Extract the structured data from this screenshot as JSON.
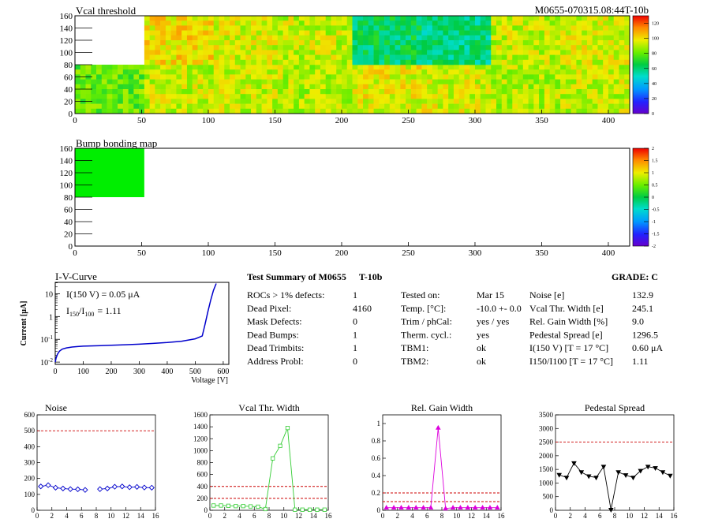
{
  "module_id": "M0655-070315.08:44T-10b",
  "maps": [
    {
      "title": "Vcal threshold",
      "x_ticks": [
        "0",
        "50",
        "100",
        "150",
        "200",
        "250",
        "300",
        "350",
        "400"
      ],
      "y_ticks": [
        "0",
        "20",
        "40",
        "60",
        "80",
        "100",
        "120",
        "140",
        "160"
      ],
      "z_ticks": [
        "0",
        "20",
        "40",
        "60",
        "80",
        "100",
        "120"
      ],
      "zlim": [
        0,
        130
      ],
      "rocs_bottom": [
        80,
        92,
        92,
        90,
        96,
        94,
        90,
        92
      ],
      "rocs_top": [
        null,
        100,
        94,
        92,
        62,
        58,
        92,
        94
      ],
      "xlim": [
        0,
        416
      ],
      "ylim": [
        0,
        160
      ]
    },
    {
      "title": "Bump bonding map",
      "x_ticks": [
        "0",
        "50",
        "100",
        "150",
        "200",
        "250",
        "300",
        "350",
        "400"
      ],
      "y_ticks": [
        "0",
        "20",
        "40",
        "60",
        "80",
        "100",
        "120",
        "140",
        "160"
      ],
      "z_ticks": [
        "-2",
        "-1.5",
        "-1",
        "-0.5",
        "0",
        "0.5",
        "1",
        "1.5",
        "2"
      ],
      "zlim": [
        -2,
        2
      ],
      "filled_roc": {
        "x": [
          0,
          52
        ],
        "y": [
          80,
          160
        ],
        "value": 0
      },
      "xlim": [
        0,
        416
      ],
      "ylim": [
        0,
        160
      ]
    }
  ],
  "iv": {
    "title": "I-V-Curve",
    "i150": "I(150 V) = 0.05 μA",
    "ratio_main": "I",
    "ratio_sub1": "150",
    "ratio_slash": "/I",
    "ratio_sub2": "100",
    "ratio_val": "= 1.11",
    "xlabel": "Voltage [V]",
    "ylabel": "Current [μA]",
    "x_ticks": [
      "0",
      "100",
      "200",
      "300",
      "400",
      "500",
      "600"
    ],
    "y_ticks": [
      {
        "base": "10",
        "exp": "-2"
      },
      {
        "base": "10",
        "exp": "-1"
      },
      {
        "base": "1",
        "exp": ""
      },
      {
        "base": "10",
        "exp": ""
      }
    ],
    "xlim": [
      0,
      620
    ],
    "ylog": [
      -2.1,
      1.5
    ],
    "voltage": [
      0,
      3,
      8,
      15,
      25,
      40,
      60,
      80,
      100,
      150,
      200,
      250,
      300,
      350,
      400,
      450,
      500,
      525,
      535,
      545,
      555,
      565,
      575
    ],
    "current": [
      0.01,
      0.015,
      0.022,
      0.03,
      0.037,
      0.042,
      0.046,
      0.048,
      0.05,
      0.052,
      0.055,
      0.058,
      0.061,
      0.066,
      0.072,
      0.082,
      0.105,
      0.14,
      0.45,
      1.6,
      5.0,
      14.0,
      28.0
    ]
  },
  "summary": {
    "title": "Test Summary of M0655",
    "subtitle": "T-10b",
    "grade": "GRADE:  C",
    "left_rows": [
      {
        "label": "ROCs > 1% defects:",
        "value": "1"
      },
      {
        "label": "Dead Pixel:",
        "value": "4160"
      },
      {
        "label": "Mask Defects:",
        "value": "0"
      },
      {
        "label": "Dead Bumps:",
        "value": "1"
      },
      {
        "label": "Dead Trimbits:",
        "value": "1"
      },
      {
        "label": "Address Probl:",
        "value": "0"
      }
    ],
    "mid_rows": [
      {
        "label": "Tested on:",
        "value": "Mar 15"
      },
      {
        "label": "Temp. [°C]:",
        "value": "-10.0 +- 0.0"
      },
      {
        "label": "Trim / phCal:",
        "value": "yes / yes"
      },
      {
        "label": "Therm. cycl.:",
        "value": "yes"
      },
      {
        "label": "TBM1:",
        "value": "ok"
      },
      {
        "label": "TBM2:",
        "value": "ok"
      }
    ],
    "right_rows": [
      {
        "label": "Noise [e]",
        "value": "132.9"
      },
      {
        "label": "Vcal Thr. Width [e]",
        "value": "245.1"
      },
      {
        "label": "Rel. Gain Width [%]",
        "value": "9.0"
      },
      {
        "label": "Pedestal Spread [e]",
        "value": "1296.5"
      },
      {
        "label": "I(150 V)  [T = 17 °C]",
        "value": "0.60 μA"
      },
      {
        "label": "I150/I100  [T = 17 °C]",
        "value": "1.11"
      }
    ]
  },
  "chart_data": [
    {
      "type": "line",
      "title": "Noise",
      "marker": "diamond",
      "color": "#0000cc",
      "xlim": [
        0,
        16
      ],
      "ylim": [
        0,
        600
      ],
      "x_ticks": [
        "0",
        "2",
        "4",
        "6",
        "8",
        "10",
        "12",
        "14",
        "16"
      ],
      "y_ticks": [
        "0",
        "100",
        "200",
        "300",
        "400",
        "500",
        "600"
      ],
      "threshold": [
        500
      ],
      "segments": [
        {
          "x": [
            0,
            1,
            2,
            3,
            4,
            5,
            6
          ],
          "y": [
            150,
            158,
            142,
            137,
            133,
            132,
            128
          ]
        },
        {
          "x": [
            8,
            9,
            10,
            11,
            12,
            13,
            14,
            15
          ],
          "y": [
            133,
            137,
            148,
            150,
            145,
            147,
            143,
            142
          ]
        }
      ]
    },
    {
      "type": "line",
      "title": "Vcal Thr. Width",
      "marker": "square",
      "color": "#33cc33",
      "xlim": [
        0,
        16
      ],
      "ylim": [
        0,
        1600
      ],
      "x_ticks": [
        "0",
        "2",
        "4",
        "6",
        "8",
        "10",
        "12",
        "14",
        "16"
      ],
      "y_ticks": [
        "0",
        "200",
        "400",
        "600",
        "800",
        "1000",
        "1200",
        "1400",
        "1600"
      ],
      "threshold": [
        200,
        400
      ],
      "segments": [
        {
          "x": [
            0,
            1,
            2,
            3,
            4,
            5,
            6,
            7,
            8,
            9,
            10,
            11,
            12,
            13,
            14,
            15
          ],
          "y": [
            80,
            80,
            75,
            70,
            70,
            65,
            60,
            20,
            870,
            1080,
            1380,
            10,
            10,
            10,
            10,
            10
          ]
        }
      ]
    },
    {
      "type": "line",
      "title": "Rel. Gain Width",
      "marker": "triangle",
      "color": "#dd00dd",
      "xlim": [
        0,
        16
      ],
      "ylim": [
        0,
        1.1
      ],
      "x_ticks": [
        "0",
        "2",
        "4",
        "6",
        "8",
        "10",
        "12",
        "14",
        "16"
      ],
      "y_ticks": [
        "0",
        "0.2",
        "0.4",
        "0.6",
        "0.8",
        "1"
      ],
      "threshold": [
        0.1,
        0.2
      ],
      "segments": [
        {
          "x": [
            0,
            1,
            2,
            3,
            4,
            5,
            6,
            7,
            8,
            9,
            10,
            11,
            12,
            13,
            14,
            15
          ],
          "y": [
            0.03,
            0.03,
            0.03,
            0.03,
            0.03,
            0.03,
            0.03,
            0.95,
            0.02,
            0.03,
            0.03,
            0.03,
            0.03,
            0.03,
            0.03,
            0.03
          ]
        }
      ]
    },
    {
      "type": "line",
      "title": "Pedestal Spread",
      "marker": "triangle-down",
      "color": "#000000",
      "xlim": [
        0,
        16
      ],
      "ylim": [
        0,
        3500
      ],
      "x_ticks": [
        "0",
        "2",
        "4",
        "6",
        "8",
        "10",
        "12",
        "14",
        "16"
      ],
      "y_ticks": [
        "0",
        "500",
        "1000",
        "1500",
        "2000",
        "2500",
        "3000",
        "3500"
      ],
      "threshold": [
        2500
      ],
      "segments": [
        {
          "x": [
            0,
            1,
            2,
            3,
            4,
            5,
            6,
            7,
            8,
            9,
            10,
            11,
            12,
            13,
            14,
            15
          ],
          "y": [
            1300,
            1200,
            1730,
            1400,
            1250,
            1200,
            1600,
            20,
            1400,
            1290,
            1200,
            1450,
            1600,
            1550,
            1400,
            1270
          ]
        }
      ]
    }
  ]
}
